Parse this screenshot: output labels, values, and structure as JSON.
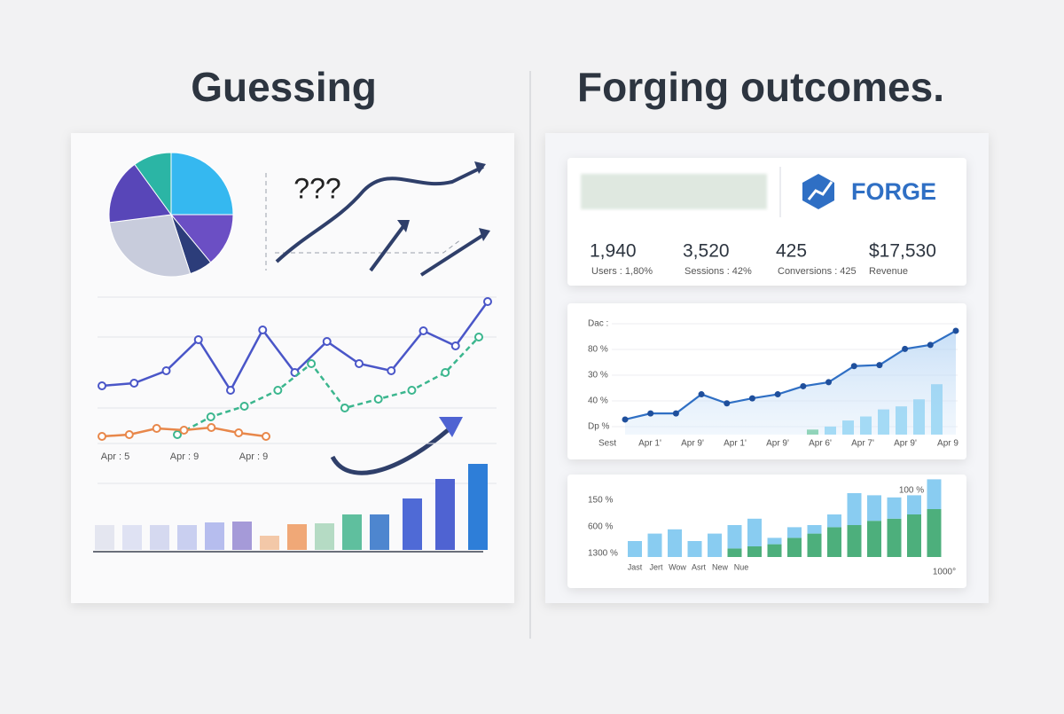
{
  "left": {
    "title": "Guessing",
    "question": "???",
    "pie": {
      "values": [
        25,
        14,
        6,
        28,
        17,
        10
      ],
      "colors": [
        "#35b8f0",
        "#6b4fc4",
        "#2c3d7a",
        "#c8ccdc",
        "#5846b8",
        "#2bb5a5"
      ]
    },
    "lines": [
      {
        "color": "#4a56c8",
        "values": [
          85,
          88,
          102,
          137,
          80,
          148,
          100,
          135,
          110,
          102,
          147,
          130,
          180
        ]
      },
      {
        "color": "#3bb68e",
        "values": [
          30,
          50,
          62,
          80,
          110,
          60,
          70,
          80,
          100,
          140
        ]
      },
      {
        "color": "#e8874a",
        "values": [
          28,
          30,
          37,
          35,
          38,
          32,
          28
        ]
      }
    ],
    "x_labels": [
      "Apr : 5",
      "Apr : 9",
      "Apr : 9"
    ],
    "bars": {
      "values": [
        28,
        28,
        28,
        28,
        31,
        32,
        16,
        29,
        30,
        40,
        40,
        58,
        80,
        97
      ],
      "colors": [
        "#e4e6f0",
        "#dfe2f3",
        "#d5d9f0",
        "#c9cff0",
        "#b6bdee",
        "#a59ad8",
        "#f3c8a8",
        "#f0a877",
        "#b5dbc4",
        "#5fbf9e",
        "#4e86cf",
        "#4f6ad6",
        "#4f63d2",
        "#2e7ed8"
      ]
    }
  },
  "right": {
    "title": "Forging outcomes.",
    "logo": "FORGE",
    "kpis": [
      {
        "value": "1,940",
        "label": "Users : 1,80%"
      },
      {
        "value": "3,520",
        "label": "Sessions : 42%"
      },
      {
        "value": "425",
        "label": "Conversions : 425"
      },
      {
        "value": "$17,530",
        "label": "Revenue"
      }
    ],
    "area_chart": {
      "y_labels": [
        "Dac :",
        "80 %",
        "30 %",
        "40 %",
        "Dp %"
      ],
      "x_labels": [
        "Sest",
        "Apr 1'",
        "Apr 9'",
        "Apr 1'",
        "Apr 9'",
        "Apr 6'",
        "Apr 7'",
        "Apr 9'",
        "Apr 9"
      ],
      "ylim": [
        0,
        110
      ],
      "line": {
        "color": "#2f6fc4",
        "values": [
          15,
          21,
          21,
          40,
          31,
          36,
          40,
          48,
          52,
          68,
          69,
          85,
          89,
          103
        ]
      },
      "bars": {
        "values": [
          5,
          8,
          14,
          18,
          25,
          28,
          35,
          50
        ],
        "colors": [
          "#5fc48e",
          "#7fd0f2",
          "#7fd0f2",
          "#7fd0f2",
          "#7fd0f2",
          "#7fd0f2",
          "#7fd0f2",
          "#7fd0f2"
        ]
      }
    },
    "bar_chart": {
      "y_labels": [
        "150 %",
        "600 %",
        "1300 %"
      ],
      "top_label": "100 %",
      "corner_label": "1000°",
      "x_labels": [
        "Jast",
        "Jert",
        "Wow",
        "Asrt",
        "New",
        "Nue"
      ],
      "series": [
        {
          "color": "#3aa66e",
          "values": [
            0,
            0,
            0,
            0,
            0,
            8,
            10,
            12,
            18,
            22,
            28,
            30,
            34,
            36,
            40,
            45
          ]
        },
        {
          "color": "#7cc7f0",
          "values": [
            15,
            22,
            26,
            15,
            22,
            22,
            26,
            6,
            10,
            8,
            12,
            30,
            24,
            20,
            18,
            28
          ]
        }
      ]
    }
  }
}
